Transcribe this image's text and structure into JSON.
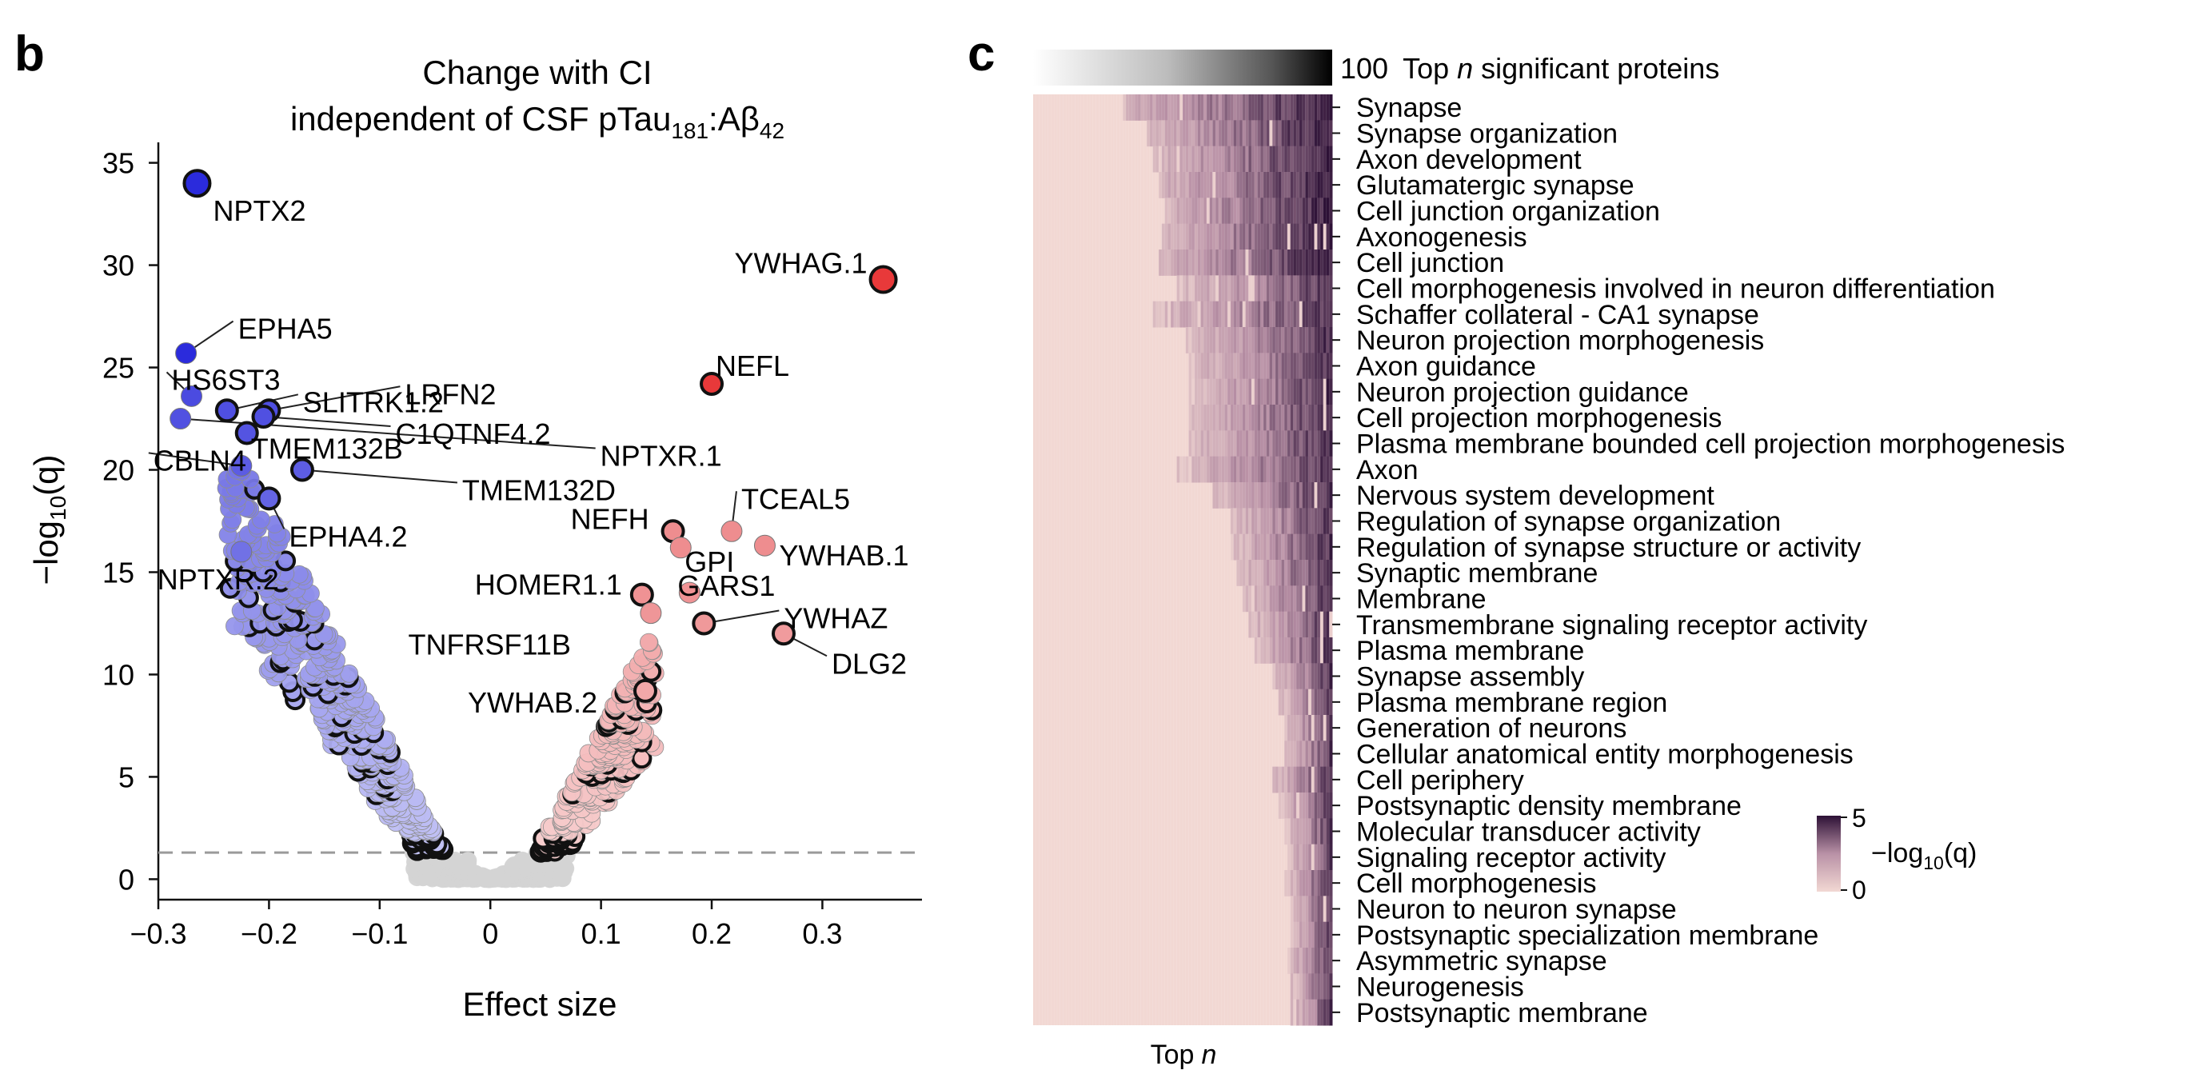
{
  "panels": {
    "volcano_letter": "b",
    "heatmap_letter": "c"
  },
  "chart_data": [
    {
      "type": "scatter",
      "title_line1": "Change with CI",
      "title_line2_prefix": "independent of CSF pTau",
      "title_sub1": "181",
      "title_mid": ":Aβ",
      "title_sub2": "42",
      "xlabel": "Effect size",
      "ylabel_prefix": "−log",
      "ylabel_sub": "10",
      "ylabel_suffix": "(q)",
      "xlim": [
        -0.3,
        0.39
      ],
      "ylim": [
        -1,
        36
      ],
      "xticks": [
        -0.3,
        -0.2,
        -0.1,
        0,
        0.1,
        0.2,
        0.3
      ],
      "xtick_labels": [
        "−0.3",
        "−0.2",
        "−0.1",
        "0",
        "0.1",
        "0.2",
        "0.3"
      ],
      "yticks": [
        0,
        5,
        10,
        15,
        20,
        25,
        30,
        35
      ],
      "ytick_labels": [
        "0",
        "5",
        "10",
        "15",
        "20",
        "25",
        "30",
        "35"
      ],
      "significance_threshold": 1.3,
      "colors": {
        "down_strong": "#2b2bdc",
        "down_mid": "#7676e6",
        "down_light": "#c9c9f5",
        "up_strong": "#e8393a",
        "up_mid": "#ee8d8f",
        "up_light": "#f6d3d3",
        "nonsig": "#d4d4d4",
        "outline": "#111111",
        "threshold": "#9a9a9a"
      },
      "labeled_points": [
        {
          "name": "NPTX2",
          "x": -0.265,
          "y": 34.0,
          "outlined": true
        },
        {
          "name": "YWHAG.1",
          "x": 0.355,
          "y": 29.3,
          "outlined": true
        },
        {
          "name": "EPHA5",
          "x": -0.275,
          "y": 25.7,
          "outlined": false
        },
        {
          "name": "HS6ST3",
          "x": -0.27,
          "y": 23.6,
          "outlined": false
        },
        {
          "name": "NEFL",
          "x": 0.2,
          "y": 24.2,
          "outlined": true
        },
        {
          "name": "LRFN2",
          "x": -0.2,
          "y": 22.9,
          "outlined": true
        },
        {
          "name": "SLITRK1.2",
          "x": -0.238,
          "y": 22.9,
          "outlined": true
        },
        {
          "name": "C1QTNF4.2",
          "x": -0.205,
          "y": 22.6,
          "outlined": true
        },
        {
          "name": "TMEM132B",
          "x": -0.22,
          "y": 21.8,
          "outlined": true
        },
        {
          "name": "NPTXR.1",
          "x": -0.28,
          "y": 22.5,
          "outlined": false
        },
        {
          "name": "CBLN4",
          "x": -0.225,
          "y": 20.2,
          "outlined": false
        },
        {
          "name": "TMEM132D",
          "x": -0.17,
          "y": 20.0,
          "outlined": true
        },
        {
          "name": "EPHA4.2",
          "x": -0.2,
          "y": 18.6,
          "outlined": true
        },
        {
          "name": "NPTXR.2",
          "x": -0.225,
          "y": 16.0,
          "outlined": false
        },
        {
          "name": "TCEAL5",
          "x": 0.218,
          "y": 17.0,
          "outlined": false
        },
        {
          "name": "NEFH",
          "x": 0.165,
          "y": 17.0,
          "outlined": true
        },
        {
          "name": "GPI",
          "x": 0.172,
          "y": 16.2,
          "outlined": false
        },
        {
          "name": "YWHAB.1",
          "x": 0.248,
          "y": 16.3,
          "outlined": false
        },
        {
          "name": "HOMER1.1",
          "x": 0.137,
          "y": 13.9,
          "outlined": true
        },
        {
          "name": "GARS1",
          "x": 0.18,
          "y": 14.0,
          "outlined": false
        },
        {
          "name": "TNFRSF11B",
          "x": 0.145,
          "y": 13.0,
          "outlined": false
        },
        {
          "name": "YWHAZ",
          "x": 0.193,
          "y": 12.5,
          "outlined": true
        },
        {
          "name": "DLG2",
          "x": 0.265,
          "y": 12.0,
          "outlined": true
        },
        {
          "name": "YWHAB.2",
          "x": 0.14,
          "y": 9.2,
          "outlined": true
        }
      ],
      "label_texts": {
        "NPTX2": "NPTX2",
        "YWHAG.1": "YWHAG.1",
        "EPHA5": "EPHA5",
        "HS6ST3": "HS6ST3",
        "NEFL": "NEFL",
        "LRFN2": "LRFN2",
        "SLITRK1.2": "SLITRK1.2",
        "C1QTNF4.2": "C1QTNF4.2",
        "TMEM132B": "TMEM132B",
        "NPTXR.1": "NPTXR.1",
        "CBLN4": "CBLN4",
        "TMEM132D": "TMEM132D",
        "EPHA4.2": "EPHA4.2",
        "NPTXR.2": "NPTXR.2",
        "TCEAL5": "TCEAL5",
        "NEFH": "NEFH",
        "GPI": "GPI",
        "YWHAB.1": "YWHAB.1",
        "HOMER1.1": "HOMER1.1",
        "GARS1": "GARS1",
        "TNFRSF11B": "TNFRSF11B",
        "YWHAZ": "YWHAZ",
        "DLG2": "DLG2",
        "YWHAB.2": "YWHAB.2"
      }
    },
    {
      "type": "heatmap",
      "top_bar_label_value": "100",
      "top_bar_label_text": "Top",
      "top_bar_label_n": "n",
      "top_bar_label_rest": "significant proteins",
      "xlabel_text": "Top",
      "xlabel_n": "n",
      "n_columns": 100,
      "colorbar_max_label": "5",
      "colorbar_min_label": "0",
      "colorbar_title_prefix": "−log",
      "colorbar_title_sub": "10",
      "colorbar_title_suffix": "(q)",
      "value_range": [
        0,
        5
      ],
      "colors": {
        "low": "#f2d8d3",
        "mid": "#b991a6",
        "high": "#2d1136"
      },
      "rows": [
        {
          "term": "Synapse",
          "onset": 30
        },
        {
          "term": "Synapse organization",
          "onset": 38
        },
        {
          "term": "Axon development",
          "onset": 40
        },
        {
          "term": "Glutamatergic synapse",
          "onset": 42
        },
        {
          "term": "Cell junction organization",
          "onset": 44
        },
        {
          "term": "Axonogenesis",
          "onset": 43
        },
        {
          "term": "Cell junction",
          "onset": 42
        },
        {
          "term": "Cell morphogenesis involved in neuron differentiation",
          "onset": 48
        },
        {
          "term": "Schaffer collateral - CA1 synapse",
          "onset": 40
        },
        {
          "term": "Neuron projection morphogenesis",
          "onset": 51
        },
        {
          "term": "Axon guidance",
          "onset": 52
        },
        {
          "term": "Neuron projection guidance",
          "onset": 52
        },
        {
          "term": "Cell projection morphogenesis",
          "onset": 52
        },
        {
          "term": "Plasma membrane bounded cell projection morphogenesis",
          "onset": 52
        },
        {
          "term": "Axon",
          "onset": 48
        },
        {
          "term": "Nervous system development",
          "onset": 60
        },
        {
          "term": "Regulation of synapse organization",
          "onset": 66
        },
        {
          "term": "Regulation of synapse structure or activity",
          "onset": 66
        },
        {
          "term": "Synaptic membrane",
          "onset": 68
        },
        {
          "term": "Membrane",
          "onset": 70
        },
        {
          "term": "Transmembrane signaling receptor activity",
          "onset": 72
        },
        {
          "term": "Plasma membrane",
          "onset": 74
        },
        {
          "term": "Synapse assembly",
          "onset": 80
        },
        {
          "term": "Plasma membrane region",
          "onset": 82
        },
        {
          "term": "Generation of neurons",
          "onset": 84
        },
        {
          "term": "Cellular anatomical entity morphogenesis",
          "onset": 84
        },
        {
          "term": "Cell periphery",
          "onset": 80
        },
        {
          "term": "Postsynaptic density membrane",
          "onset": 82
        },
        {
          "term": "Molecular transducer activity",
          "onset": 84
        },
        {
          "term": "Signaling receptor activity",
          "onset": 85
        },
        {
          "term": "Cell morphogenesis",
          "onset": 84
        },
        {
          "term": "Neuron to neuron synapse",
          "onset": 86
        },
        {
          "term": "Postsynaptic specialization membrane",
          "onset": 86
        },
        {
          "term": "Asymmetric synapse",
          "onset": 85
        },
        {
          "term": "Neurogenesis",
          "onset": 86
        },
        {
          "term": "Postsynaptic membrane",
          "onset": 86
        }
      ]
    }
  ]
}
